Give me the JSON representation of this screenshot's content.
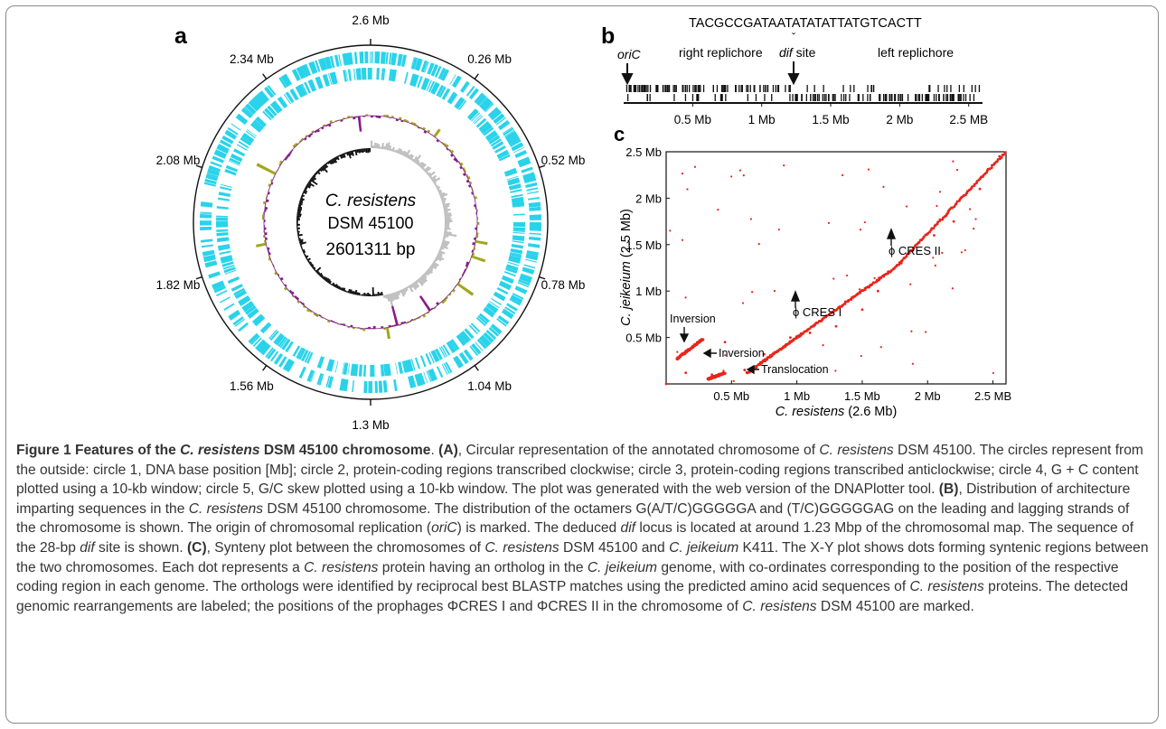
{
  "panel_a": {
    "letter": "a",
    "positions": [
      "2.6 Mb",
      "0.26 Mb",
      "0.52 Mb",
      "0.78 Mb",
      "1.04 Mb",
      "1.3 Mb",
      "1.56 Mb",
      "1.82 Mb",
      "2.08 Mb",
      "2.34 Mb"
    ],
    "center_lines": [
      "C. resistens",
      "DSM 45100",
      "2601311 bp"
    ],
    "colors": {
      "cds": "#29d3ea",
      "gc_hi": "#a3a61d",
      "gc_lo": "#8a1a8c",
      "skew_pos": "#bfbfbf",
      "skew_neg": "#111111"
    }
  },
  "panel_b": {
    "letter": "b",
    "sequence_left": "TACGCCGATAATA",
    "sequence_caret": "T",
    "sequence_right": "ATATTATGTCACTT",
    "oric_label": "oriC",
    "right_replichore": "right replichore",
    "dif_label": "dif",
    "site_label": " site",
    "left_replichore": "left replichore",
    "axis_ticks": [
      "0.5 Mb",
      "1 Mb",
      "1.5 Mb",
      "2 Mb",
      "2.5 MB"
    ]
  },
  "panel_c": {
    "letter": "c",
    "xlabel_italic": "C. resistens",
    "xlabel_rest": " (2.6 Mb)",
    "ylabel_italic": "C. jeikeium",
    "ylabel_rest": " (2.5 Mb)",
    "annotations": {
      "inversion_1": "Inversion",
      "inversion_2": "Inversion",
      "translocation": "Translocation",
      "cres1": "ϕ CRES I",
      "cres2": "ϕ CRES II"
    }
  },
  "chart_data": {
    "type": "scatter",
    "xlabel": "C. resistens (2.6 Mb)",
    "ylabel": "C. jeikeium (2.5 Mb)",
    "x_ticks": [
      "0.5 Mb",
      "1 Mb",
      "1.5 Mb",
      "2 Mb",
      "2.5 MB"
    ],
    "y_ticks": [
      "0.5 Mb",
      "1 Mb",
      "1.5 Mb",
      "2 Mb",
      "2.5 Mb"
    ],
    "xlim": [
      0,
      2.6
    ],
    "ylim": [
      0,
      2.5
    ],
    "series": [
      {
        "values": [
          [
            0.0,
            0.0
          ],
          [
            0.15,
            0.12
          ],
          [
            0.35,
            0.1
          ],
          [
            0.45,
            0.45
          ],
          [
            0.6,
            0.15
          ],
          [
            0.75,
            0.32
          ],
          [
            0.95,
            0.5
          ],
          [
            1.1,
            0.55
          ],
          [
            1.3,
            0.62
          ],
          [
            1.5,
            0.8
          ],
          [
            1.62,
            1.0
          ],
          [
            1.8,
            1.3
          ],
          [
            2.05,
            1.6
          ],
          [
            2.2,
            1.75
          ],
          [
            2.4,
            2.1
          ],
          [
            2.55,
            2.45
          ]
        ]
      }
    ]
  },
  "caption": {
    "title_a": "Figure 1 Features of the ",
    "title_i": "C. resistens",
    "title_b": " DSM 45100 chromosome",
    "t1": ". ",
    "A": "(A)",
    "t2": ", Circular representation of the annotated chromosome of ",
    "i1": "C. resistens",
    "t3": " DSM 45100. The circles represent from the outside: circle 1, DNA base position [Mb]; circle 2, protein-coding regions transcribed clockwise; circle 3, protein-coding regions transcribed anticlockwise; circle 4, G + C content plotted using a 10-kb window; circle 5, G/C skew plotted using a 10-kb window. The plot was generated with the web version of the DNAPlotter tool. ",
    "B": "(B)",
    "t4": ", Distribution of architecture imparting sequences in the ",
    "i2": "C. resistens",
    "t5": " DSM 45100 chromosome. The distribution of the octamers G(A/T/C)GGGGGA and (T/C)GGGGGAG on the leading and lagging strands of the chromosome is shown. The origin of chromosomal replication (",
    "i3": "oriC",
    "t6": ") is marked. The deduced ",
    "i4": "dif",
    "t7": " locus is located at around 1.23 Mbp of the chromosomal map. The sequence of the 28-bp ",
    "i5": "dif",
    "t8": " site is shown. ",
    "C": "(C)",
    "t9": ", Synteny plot between the chromosomes of ",
    "i6": "C. resistens",
    "t10": " DSM 45100 and ",
    "i7": "C. jeikeium",
    "t11": " K411. The X-Y plot shows dots forming syntenic regions between the two chromosomes. Each dot represents a ",
    "i8": "C. resistens",
    "t12": " protein having an ortholog in the ",
    "i9": "C. jeikeium",
    "t13": " genome, with co-ordinates corresponding to the position of the respective coding region in each genome. The orthologs were identified by reciprocal best BLASTP matches using the predicted amino acid sequences of ",
    "i10": "C. resistens",
    "t14": " proteins. The detected genomic rearrangements are labeled; the positions of the prophages ΦCRES I and ΦCRES II in the chromosome of ",
    "i11": "C. resistens",
    "t15": " DSM 45100 are marked."
  }
}
